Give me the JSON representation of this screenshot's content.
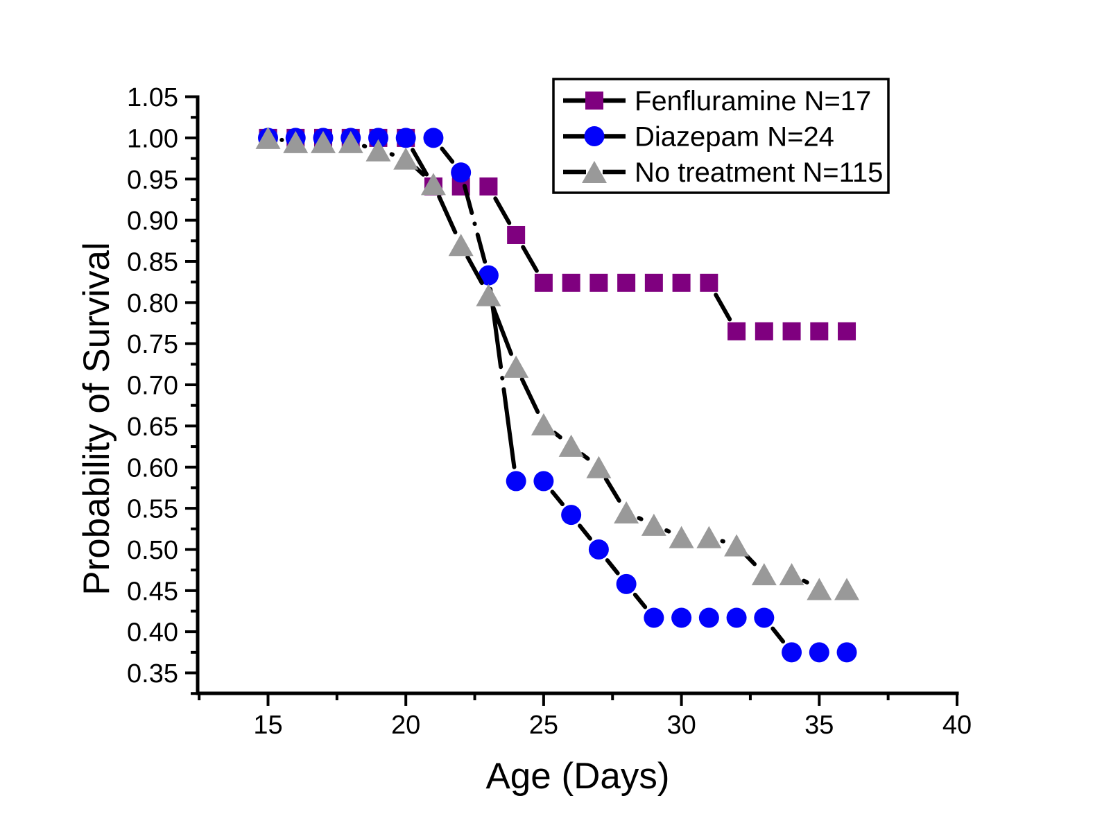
{
  "chart_data": {
    "type": "line",
    "title": "",
    "xlabel": "Age (Days)",
    "ylabel": "Probability of Survival",
    "xlim": [
      12.5,
      40
    ],
    "ylim": [
      0.325,
      1.05
    ],
    "xticks_major": [
      15,
      20,
      25,
      30,
      35,
      40
    ],
    "xticks_minor": [
      12.5,
      17.5,
      22.5,
      27.5,
      32.5,
      37.5
    ],
    "yticks_major": [
      0.35,
      0.4,
      0.45,
      0.5,
      0.55,
      0.6,
      0.65,
      0.7,
      0.75,
      0.8,
      0.85,
      0.9,
      0.95,
      1.0,
      1.05
    ],
    "grid": false,
    "legend_position": "top-right",
    "line_color": "#000000",
    "line_style": "dash-dot",
    "x": [
      15,
      16,
      17,
      18,
      19,
      20,
      21,
      22,
      23,
      24,
      25,
      26,
      27,
      28,
      29,
      30,
      31,
      32,
      33,
      34,
      35,
      36
    ],
    "series": [
      {
        "name": "Fenfluramine N=17",
        "marker": "square",
        "color": "#7F007F",
        "values": [
          1.0,
          1.0,
          1.0,
          1.0,
          1.0,
          1.0,
          0.941,
          0.941,
          0.941,
          0.882,
          0.824,
          0.824,
          0.824,
          0.824,
          0.824,
          0.824,
          0.824,
          0.765,
          0.765,
          0.765,
          0.765,
          0.765
        ]
      },
      {
        "name": "Diazepam N=24",
        "marker": "circle",
        "color": "#0202FA",
        "values": [
          1.0,
          1.0,
          1.0,
          1.0,
          1.0,
          1.0,
          1.0,
          0.958,
          0.833,
          0.583,
          0.583,
          0.542,
          0.5,
          0.458,
          0.417,
          0.417,
          0.417,
          0.417,
          0.417,
          0.375,
          0.375,
          0.375
        ]
      },
      {
        "name": "No treatment N=115",
        "marker": "triangle",
        "color": "#999999",
        "values": [
          1.0,
          0.995,
          0.995,
          0.995,
          0.985,
          0.975,
          0.944,
          0.87,
          0.809,
          0.722,
          0.652,
          0.626,
          0.6,
          0.545,
          0.53,
          0.515,
          0.515,
          0.505,
          0.47,
          0.47,
          0.452,
          0.452
        ]
      }
    ]
  }
}
